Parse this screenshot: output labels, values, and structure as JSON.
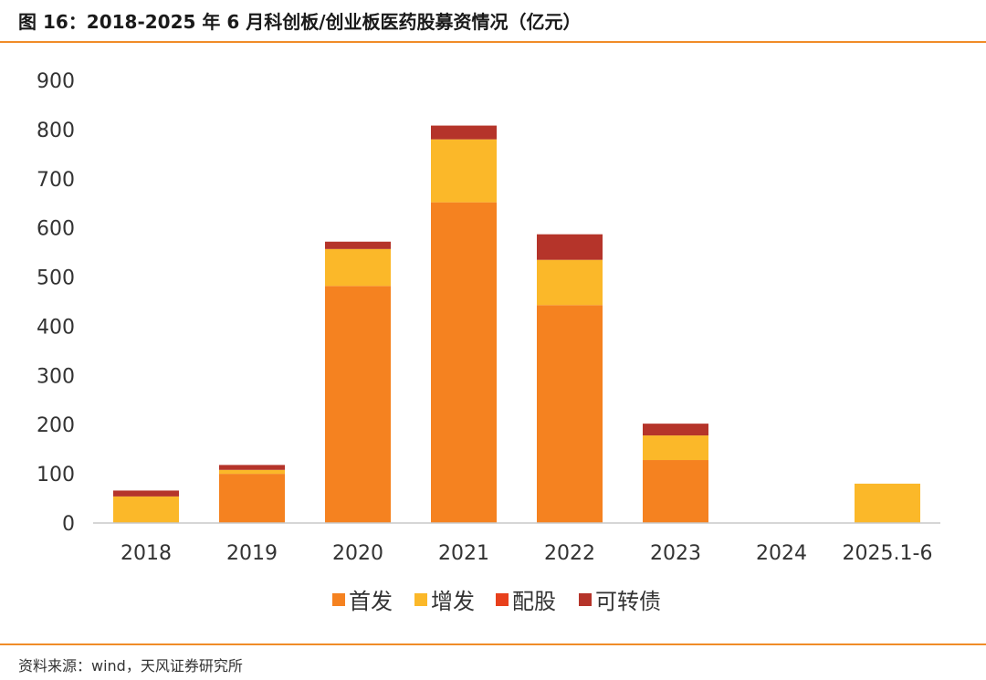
{
  "header": {
    "title": "图 16：2018-2025 年 6 月科创板/创业板医药股募资情况（亿元）"
  },
  "footer": {
    "source": "资料来源：wind，天风证券研究所"
  },
  "chart_data": {
    "type": "bar",
    "stacked": true,
    "title": "图 16：2018-2025 年 6 月科创板/创业板医药股募资情况（亿元）",
    "xlabel": "",
    "ylabel": "",
    "ylim": [
      0,
      900
    ],
    "yticks": [
      0,
      100,
      200,
      300,
      400,
      500,
      600,
      700,
      800,
      900
    ],
    "categories": [
      "2018",
      "2019",
      "2020",
      "2021",
      "2022",
      "2023",
      "2024",
      "2025.1-6"
    ],
    "series": [
      {
        "name": "首发",
        "color": "#f58220",
        "values": [
          0,
          100,
          482,
          652,
          443,
          128,
          0,
          0
        ]
      },
      {
        "name": "增发",
        "color": "#fbb829",
        "values": [
          54,
          8,
          75,
          128,
          92,
          50,
          0,
          80
        ]
      },
      {
        "name": "配股",
        "color": "#e8401c",
        "values": [
          0,
          0,
          0,
          0,
          0,
          0,
          0,
          0
        ]
      },
      {
        "name": "可转债",
        "color": "#b5342a",
        "values": [
          12,
          10,
          15,
          28,
          52,
          24,
          0,
          0
        ]
      }
    ],
    "legend_position": "bottom",
    "grid": false
  }
}
